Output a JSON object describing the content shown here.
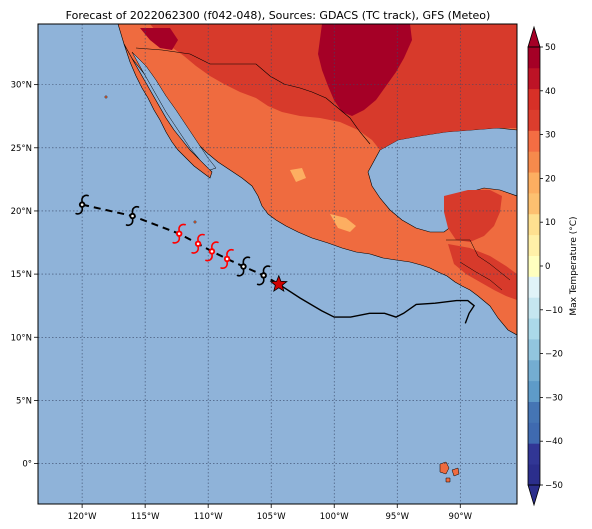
{
  "title": "Forecast of 2022062300 (f042-048), Sources: GDACS (TC track), GFS (Meteo)",
  "map": {
    "lon_range": [
      -123.5,
      -85.5
    ],
    "lat_range": [
      -3.2,
      34.8
    ],
    "lon_ticks": [
      -120,
      -115,
      -110,
      -105,
      -100,
      -95,
      -90
    ],
    "lat_ticks": [
      0,
      5,
      10,
      15,
      20,
      25,
      30
    ],
    "lon_tick_labels": [
      "120°W",
      "115°W",
      "110°W",
      "105°W",
      "100°W",
      "95°W",
      "90°W"
    ],
    "lat_tick_labels": [
      "0°",
      "5°N",
      "10°N",
      "15°N",
      "20°N",
      "25°N",
      "30°N"
    ],
    "ocean_color": "#8fb3d9",
    "grid": true
  },
  "colorbar": {
    "label": "Max Temperature (°C)",
    "tick_labels": [
      "50",
      "40",
      "30",
      "20",
      "10",
      "0",
      "−10",
      "−20",
      "−30",
      "−40",
      "−50"
    ],
    "levels": [
      -50,
      -45,
      -40,
      -35,
      -30,
      -25,
      -20,
      -15,
      -10,
      -5,
      0,
      5,
      10,
      15,
      20,
      25,
      30,
      35,
      40,
      45,
      50
    ],
    "colors": [
      "#2b2e8c",
      "#313695",
      "#3f6ab0",
      "#4575b4",
      "#5e9bc8",
      "#74add1",
      "#92c5de",
      "#abd9e9",
      "#c5e6f0",
      "#e0f3f8",
      "#ffffbf",
      "#fff0a8",
      "#fee090",
      "#fdc070",
      "#fdae61",
      "#f68a4c",
      "#f46d43",
      "#dc3d2d",
      "#d73027",
      "#bd1326",
      "#a50026"
    ]
  },
  "track": {
    "points": [
      {
        "lon": -120.0,
        "lat": 20.5,
        "color": "#000000",
        "type": "past"
      },
      {
        "lon": -116.0,
        "lat": 19.6,
        "color": "#000000",
        "type": "past"
      },
      {
        "lon": -112.3,
        "lat": 18.2,
        "color": "#ff0000",
        "type": "forecast"
      },
      {
        "lon": -110.8,
        "lat": 17.4,
        "color": "#ff0000",
        "type": "forecast"
      },
      {
        "lon": -109.7,
        "lat": 16.8,
        "color": "#ff0000",
        "type": "forecast"
      },
      {
        "lon": -108.5,
        "lat": 16.2,
        "color": "#ff0000",
        "type": "forecast"
      },
      {
        "lon": -107.2,
        "lat": 15.6,
        "color": "#000000",
        "type": "forecast"
      },
      {
        "lon": -105.6,
        "lat": 14.9,
        "color": "#000000",
        "type": "forecast"
      }
    ],
    "current": {
      "lon": -104.4,
      "lat": 14.2,
      "color": "#d00000"
    },
    "observed_path": [
      [
        -104.4,
        14.2
      ],
      [
        -102.7,
        13.1
      ],
      [
        -101.0,
        12.1
      ],
      [
        -100.0,
        11.6
      ],
      [
        -98.7,
        11.6
      ],
      [
        -97.2,
        11.9
      ],
      [
        -96.0,
        11.9
      ],
      [
        -95.1,
        11.6
      ],
      [
        -94.5,
        11.9
      ],
      [
        -93.5,
        12.6
      ],
      [
        -92.0,
        12.7
      ],
      [
        -90.3,
        12.9
      ],
      [
        -89.4,
        12.9
      ],
      [
        -88.9,
        12.5
      ],
      [
        -89.3,
        11.9
      ],
      [
        -89.6,
        11.1
      ]
    ]
  }
}
